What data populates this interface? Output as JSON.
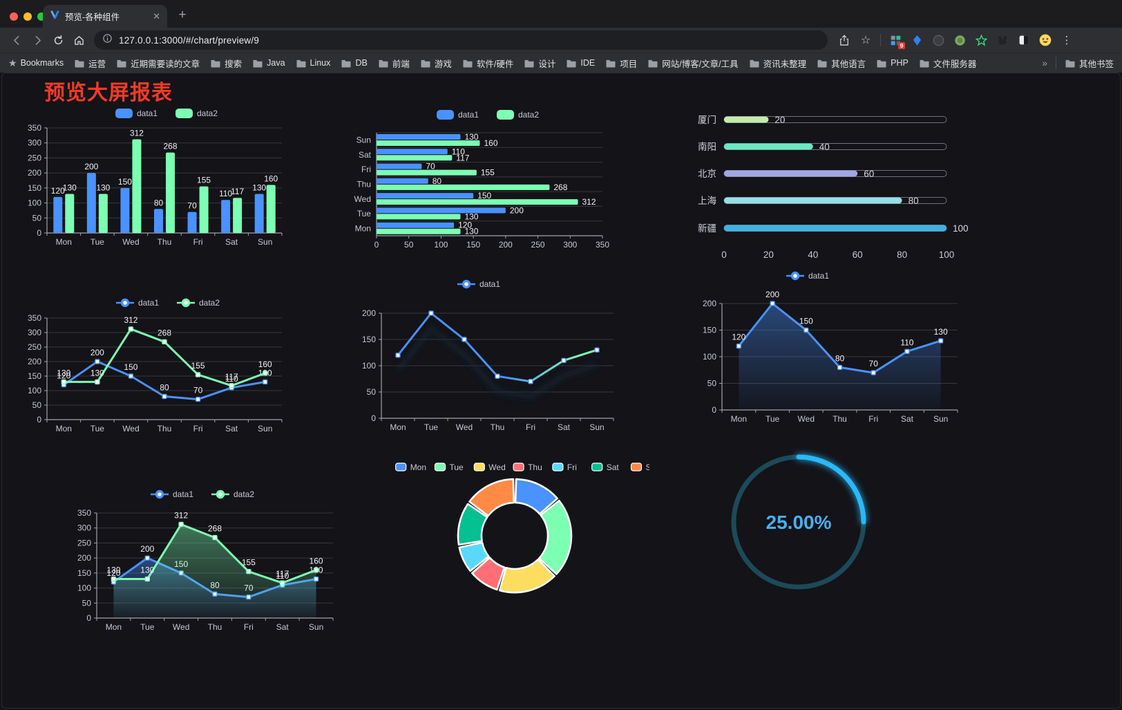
{
  "browser": {
    "tab_title": "预览-各种组件",
    "url": "127.0.0.1:3000/#/chart/preview/9",
    "extension_badge": "9",
    "extensions": [
      "grid-badge-extension",
      "blue-kite-extension",
      "dark-circle-extension",
      "green-circle-extension",
      "green-star-extension",
      "dark-paw-extension",
      "half-square-extension"
    ]
  },
  "bookmarks": {
    "label": "Bookmarks",
    "items": [
      "运营",
      "近期需要读的文章",
      "搜索",
      "Java",
      "Linux",
      "DB",
      "前端",
      "游戏",
      "软件/硬件",
      "设计",
      "IDE",
      "项目",
      "网站/博客/文章/工具",
      "资讯未整理",
      "其他语言",
      "PHP",
      "文件服务器"
    ],
    "overflow": "»",
    "other": "其他书签"
  },
  "page": {
    "title": "预览大屏报表",
    "title_color": "#f43a25"
  },
  "theme": {
    "background": "#131318",
    "axis": "#a2a3ae",
    "grid": "rgba(255,255,255,0.16)",
    "tick": "#c6c7d1",
    "label": "#f0f0f5",
    "legend_text": "#c8c8d0"
  },
  "chart_data": [
    {
      "id": "bar-vertical",
      "type": "bar",
      "categories": [
        "Mon",
        "Tue",
        "Wed",
        "Thu",
        "Fri",
        "Sat",
        "Sun"
      ],
      "series": [
        {
          "name": "data1",
          "color": "#4992ff",
          "values": [
            120,
            200,
            150,
            80,
            70,
            110,
            130
          ]
        },
        {
          "name": "data2",
          "color": "#7cffb2",
          "values": [
            130,
            130,
            312,
            268,
            155,
            117,
            160
          ]
        }
      ],
      "ylim": [
        0,
        350
      ],
      "ystep": 50,
      "legend_position": "top",
      "grid": true
    },
    {
      "id": "bar-horizontal",
      "type": "hbar",
      "categories_top_to_bottom": [
        "Sun",
        "Sat",
        "Fri",
        "Thu",
        "Wed",
        "Tue",
        "Mon"
      ],
      "series": [
        {
          "name": "data1",
          "color": "#4992ff",
          "values_top_to_bottom": [
            130,
            110,
            70,
            80,
            150,
            200,
            120
          ]
        },
        {
          "name": "data2",
          "color": "#7cffb2",
          "values_top_to_bottom": [
            160,
            117,
            155,
            268,
            312,
            130,
            130
          ]
        }
      ],
      "xlim": [
        0,
        350
      ],
      "xstep": 50,
      "legend_position": "top",
      "grid": true
    },
    {
      "id": "progress-bars",
      "type": "progress",
      "items": [
        {
          "label": "厦门",
          "value": 20,
          "color": "#c4ebad"
        },
        {
          "label": "南阳",
          "value": 40,
          "color": "#6be6c1"
        },
        {
          "label": "北京",
          "value": 60,
          "color": "#a0a7e6"
        },
        {
          "label": "上海",
          "value": 80,
          "color": "#96dee8"
        },
        {
          "label": "新疆",
          "value": 100,
          "color": "#3fb1e3"
        }
      ],
      "xlim": [
        0,
        100
      ],
      "ticks": [
        0,
        20,
        40,
        60,
        80,
        100
      ]
    },
    {
      "id": "line-two-series",
      "type": "line",
      "categories": [
        "Mon",
        "Tue",
        "Wed",
        "Thu",
        "Fri",
        "Sat",
        "Sun"
      ],
      "series": [
        {
          "name": "data1",
          "color": "#4992ff",
          "values": [
            120,
            200,
            150,
            80,
            70,
            110,
            130
          ]
        },
        {
          "name": "data2",
          "color": "#7cffb2",
          "values": [
            130,
            130,
            312,
            268,
            155,
            117,
            160
          ]
        }
      ],
      "ylim": [
        0,
        350
      ],
      "ystep": 50,
      "labels": true,
      "area": false,
      "legend_position": "top"
    },
    {
      "id": "line-gradient",
      "type": "line",
      "categories": [
        "Mon",
        "Tue",
        "Wed",
        "Thu",
        "Fri",
        "Sat",
        "Sun"
      ],
      "series": [
        {
          "name": "data1",
          "color": "#4992ff",
          "gradient": [
            "#4992ff",
            "#7cffb2"
          ],
          "values": [
            120,
            200,
            150,
            80,
            70,
            110,
            130
          ]
        }
      ],
      "ylim": [
        0,
        200
      ],
      "ystep": 50,
      "labels": false,
      "area": false,
      "shadow": true,
      "legend_position": "top"
    },
    {
      "id": "line-area-single",
      "type": "line",
      "categories": [
        "Mon",
        "Tue",
        "Wed",
        "Thu",
        "Fri",
        "Sat",
        "Sun"
      ],
      "series": [
        {
          "name": "data1",
          "color": "#4992ff",
          "values": [
            120,
            200,
            150,
            80,
            70,
            110,
            130
          ]
        }
      ],
      "ylim": [
        0,
        200
      ],
      "ystep": 50,
      "labels": true,
      "area": true,
      "legend_position": "top"
    },
    {
      "id": "line-area-two",
      "type": "line",
      "categories": [
        "Mon",
        "Tue",
        "Wed",
        "Thu",
        "Fri",
        "Sat",
        "Sun"
      ],
      "series": [
        {
          "name": "data1",
          "color": "#4992ff",
          "values": [
            120,
            200,
            150,
            80,
            70,
            110,
            130
          ]
        },
        {
          "name": "data2",
          "color": "#7cffb2",
          "values": [
            130,
            130,
            312,
            268,
            155,
            117,
            160
          ]
        }
      ],
      "ylim": [
        0,
        350
      ],
      "ystep": 50,
      "labels": true,
      "area": true,
      "legend_position": "top"
    },
    {
      "id": "donut",
      "type": "pie",
      "items": [
        {
          "label": "Mon",
          "value": 120,
          "color": "#4992ff"
        },
        {
          "label": "Tue",
          "value": 200,
          "color": "#7cffb2"
        },
        {
          "label": "Wed",
          "value": 150,
          "color": "#fddd60"
        },
        {
          "label": "Thu",
          "value": 80,
          "color": "#ff6e76"
        },
        {
          "label": "Fri",
          "value": 70,
          "color": "#58d9f9"
        },
        {
          "label": "Sat",
          "value": 110,
          "color": "#05c091"
        },
        {
          "label": "Sun",
          "value": 130,
          "color": "#ff8a45"
        }
      ],
      "legend_position": "top",
      "border_color": "#ffffff"
    },
    {
      "id": "gauge",
      "type": "gauge",
      "value": 25,
      "display": "25.00%",
      "color": "#29b9f8",
      "track_color": "#1c4a58",
      "text_color": "#47b1ee"
    }
  ]
}
